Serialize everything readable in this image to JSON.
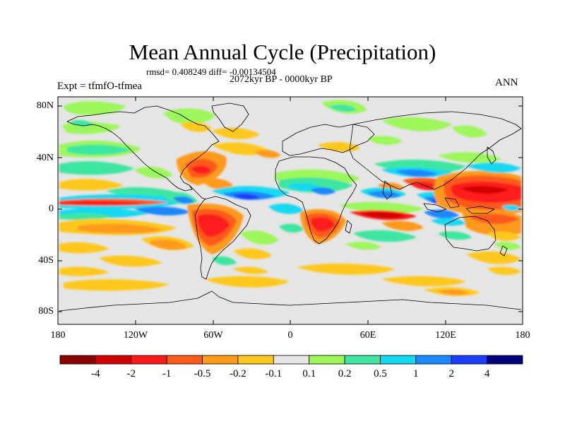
{
  "title": "Mean Annual Cycle (Precipitation)",
  "stats": "rmsd= 0.408249 diff= -0.00134504",
  "period": "2072kyr BP - 0000kyr BP",
  "experiment": "Expt = tfmfO-tfmea",
  "season": "ANN",
  "lat_ticks": [
    "80N",
    "40N",
    "0",
    "40S",
    "80S"
  ],
  "lon_ticks": [
    "180",
    "120W",
    "60W",
    "0",
    "60E",
    "120E",
    "180"
  ],
  "colorbar": {
    "labels": [
      "-4",
      "-2",
      "-1",
      "-0.5",
      "-0.2",
      "-0.1",
      "0.1",
      "0.2",
      "0.5",
      "1",
      "2",
      "4"
    ],
    "colors": [
      "#8b0000",
      "#d10000",
      "#ff1a1a",
      "#ff5a1a",
      "#ff9a1a",
      "#ffc81e",
      "#e5e5e5",
      "#9cf75a",
      "#3ee6a0",
      "#12d8f0",
      "#1a88ff",
      "#1a3cff",
      "#00007a"
    ]
  },
  "colors": {
    "ocean_land_neutral": "#e5e5e5",
    "coastline": "#000000"
  }
}
